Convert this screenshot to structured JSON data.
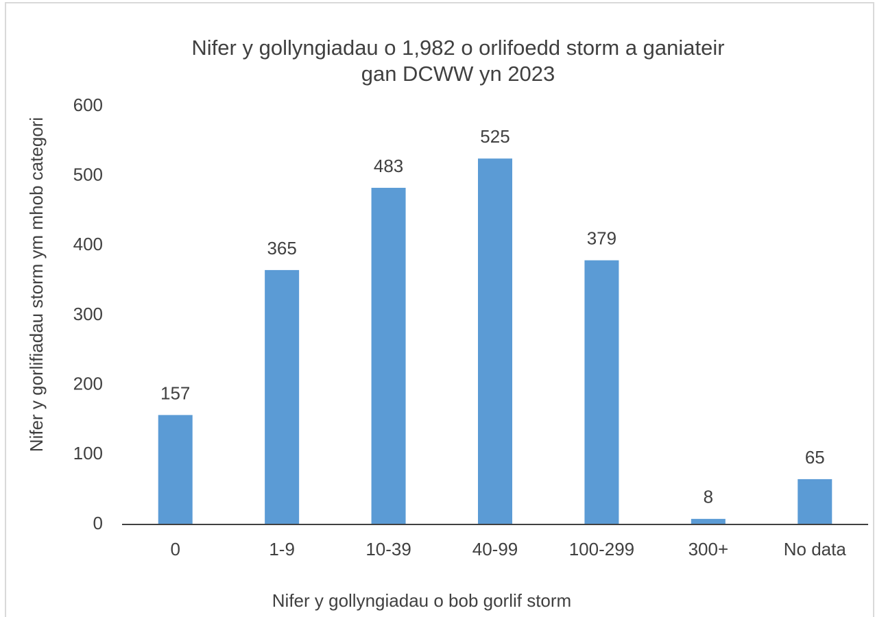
{
  "chart_data": {
    "type": "bar",
    "title": [
      "Nifer y gollyngiadau o 1,982 o orlifoedd storm a ganiateir",
      "gan DCWW yn 2023"
    ],
    "x_label": "Nifer y gollyngiadau  o bob gorlif storm",
    "y_label": "Nifer y gorlifiadau storm ym mhob categori",
    "categories": [
      "0",
      "1-9",
      "10-39",
      "40-99",
      "100-299",
      "300+",
      "No data"
    ],
    "values": [
      157,
      365,
      483,
      525,
      379,
      8,
      65
    ],
    "color": "#5b9bd5",
    "ylim": [
      0,
      600
    ],
    "yticks": [
      0,
      100,
      200,
      300,
      400,
      500,
      600
    ],
    "grid": false
  }
}
